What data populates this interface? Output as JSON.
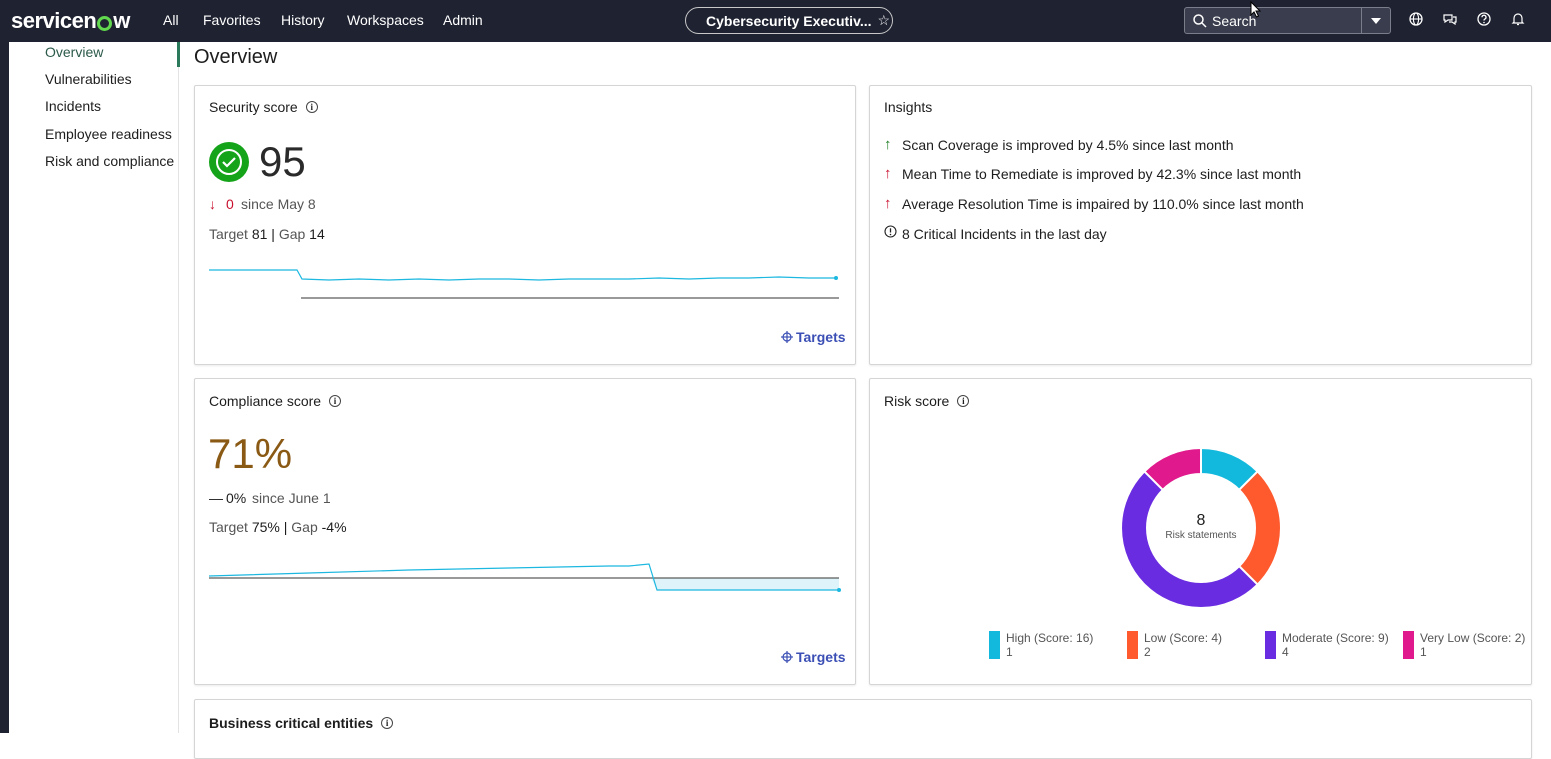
{
  "header": {
    "brand": "servicenow",
    "nav": [
      "All",
      "Favorites",
      "History",
      "Workspaces",
      "Admin"
    ],
    "workspace_title": "Cybersecurity Executiv...",
    "search_label": "Search"
  },
  "sidebar": {
    "items": [
      {
        "label": "Overview",
        "active": true
      },
      {
        "label": "Vulnerabilities"
      },
      {
        "label": "Incidents"
      },
      {
        "label": "Employee readiness"
      },
      {
        "label": "Risk and compliance"
      }
    ]
  },
  "page": {
    "title": "Overview"
  },
  "security": {
    "title": "Security score",
    "score": "95",
    "delta": "0",
    "since": "since May 8",
    "target_label": "Target",
    "target": "81",
    "gap_label": "Gap",
    "gap": "14",
    "targets_link": "Targets",
    "colors": {
      "accent": "#15a31a",
      "line": "#1cb8e0",
      "delta": "#c8102e"
    }
  },
  "insights": {
    "title": "Insights",
    "items": [
      {
        "icon": "arrow-up-green",
        "text": "Scan Coverage is improved by 4.5% since last month"
      },
      {
        "icon": "arrow-up-red",
        "text": "Mean Time to Remediate is improved by 42.3% since last month"
      },
      {
        "icon": "arrow-up-red",
        "text": "Average Resolution Time is impaired by 110.0% since last month"
      },
      {
        "icon": "alert-circle",
        "text": "8 Critical Incidents in the last day"
      }
    ]
  },
  "compliance": {
    "title": "Compliance score",
    "score": "71%",
    "delta": "0%",
    "since": "since June 1",
    "target_label": "Target",
    "target": "75%",
    "gap_label": "Gap",
    "gap": "-4%",
    "targets_link": "Targets",
    "colors": {
      "score": "#8a5a15",
      "line": "#1cb8e0"
    }
  },
  "risk": {
    "title": "Risk score",
    "center_value": "8",
    "center_label": "Risk statements",
    "legend": [
      {
        "label": "High (Score: 16)",
        "count": "1",
        "color": "#13b9dc"
      },
      {
        "label": "Low (Score: 4)",
        "count": "2",
        "color": "#ff5a2e"
      },
      {
        "label": "Moderate (Score: 9)",
        "count": "4",
        "color": "#6a2ce0"
      },
      {
        "label": "Very Low (Score: 2)",
        "count": "1",
        "color": "#e0198c"
      }
    ]
  },
  "business": {
    "title": "Business critical entities"
  }
}
